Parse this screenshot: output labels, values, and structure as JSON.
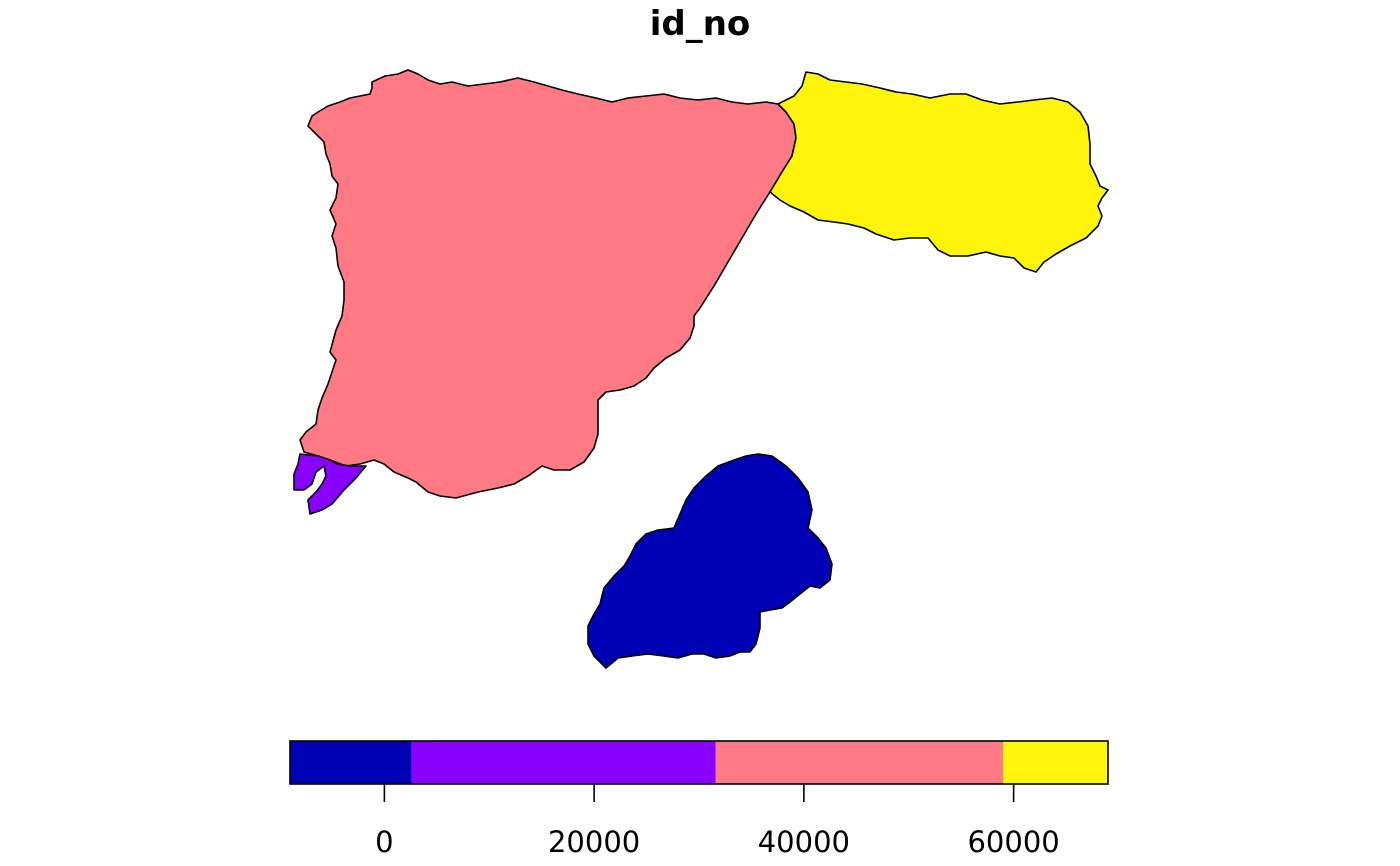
{
  "title": "id_no",
  "colors": {
    "class_1": "#0000B4",
    "class_2": "#8A00FF",
    "class_3": "#FF7A85",
    "class_4": "#FFF50A",
    "outline": "#000000"
  },
  "legend": {
    "domain": [
      -9000,
      69000
    ],
    "classes": [
      {
        "from": -9000,
        "to": 2600,
        "color_key": "class_1"
      },
      {
        "from": 2600,
        "to": 31600,
        "color_key": "class_2"
      },
      {
        "from": 31600,
        "to": 59000,
        "color_key": "class_3"
      },
      {
        "from": 59000,
        "to": 69000,
        "color_key": "class_4"
      }
    ],
    "ticks": [
      0,
      20000,
      40000,
      60000
    ],
    "tick_labels": [
      "0",
      "20000",
      "40000",
      "60000"
    ]
  }
}
